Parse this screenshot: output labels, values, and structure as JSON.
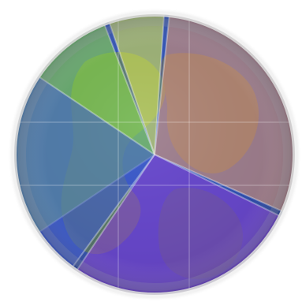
{
  "image": {
    "subject": "globe-pie-segments",
    "background": "#ffffff"
  },
  "segments": [
    {
      "name": "lime-green",
      "color": "#8ee03c",
      "start_deg": -125,
      "end_deg": -20
    },
    {
      "name": "yellow",
      "color": "#e6f04a",
      "start_deg": -20,
      "end_deg": 5
    },
    {
      "name": "peach-orange",
      "color": "#e59a6e",
      "start_deg": 5,
      "end_deg": 115
    },
    {
      "name": "violet",
      "color": "#8b3fd6",
      "start_deg": 115,
      "end_deg": 215
    },
    {
      "name": "royal-blue",
      "color": "#3f5bd0",
      "start_deg": 215,
      "end_deg": 305
    }
  ],
  "globe": {
    "ocean_color": "#2f4fae",
    "land_color": "#6f8a3a"
  },
  "rim": {
    "light": "#f2f2f2",
    "shadow": "#9aa0a8"
  }
}
